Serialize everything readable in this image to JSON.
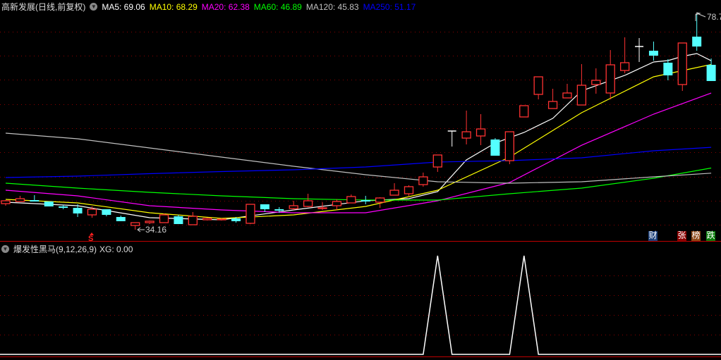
{
  "header": {
    "title": "高新发展(日线,前复权)",
    "ma": [
      {
        "label": "MA5: 69.06",
        "color": "#ffffff"
      },
      {
        "label": "MA10: 68.29",
        "color": "#ffff00"
      },
      {
        "label": "MA20: 62.38",
        "color": "#ff00ff"
      },
      {
        "label": "MA60: 46.89",
        "color": "#00ff00"
      },
      {
        "label": "MA120: 45.83",
        "color": "#c0c0c0"
      },
      {
        "label": "MA250: 51.17",
        "color": "#0000ff"
      }
    ]
  },
  "indicator": {
    "title": "爆发性黑马(9,12,26,9)",
    "value_label": "XG: 0.00"
  },
  "annotations": {
    "high_label": "78.7",
    "low_label": "34.16",
    "signal_mark": "S"
  },
  "tags": [
    {
      "label": "财",
      "bg": "#1a3f7a"
    },
    {
      "label": "张",
      "bg": "#8b0000"
    },
    {
      "label": "榜",
      "bg": "#8b4513"
    },
    {
      "label": "跌",
      "bg": "#0a7a0a"
    }
  ],
  "colors": {
    "up": "#ff3232",
    "down": "#54ffff",
    "flat": "#ffffff",
    "grid": "#8b0000"
  },
  "chart_data": [
    {
      "type": "candlestick",
      "fields": [
        "open",
        "high",
        "low",
        "close"
      ],
      "candles": [
        [
          39.54,
          40.27,
          39.11,
          40.13
        ],
        [
          39.98,
          41.15,
          39.98,
          40.56
        ],
        [
          40.27,
          41.29,
          39.98,
          39.98
        ],
        [
          39.98,
          39.98,
          38.96,
          38.96
        ],
        [
          38.96,
          39.25,
          38.38,
          38.67
        ],
        [
          38.67,
          39.4,
          36.78,
          37.51
        ],
        [
          37.22,
          38.96,
          36.63,
          38.38
        ],
        [
          38.38,
          38.38,
          36.92,
          37.22
        ],
        [
          36.78,
          37.07,
          35.91,
          35.91
        ],
        [
          35.03,
          35.61,
          34.16,
          35.61
        ],
        [
          35.61,
          36.05,
          35.32,
          35.91
        ],
        [
          35.61,
          37.51,
          35.61,
          37.22
        ],
        [
          36.92,
          37.22,
          35.32,
          35.32
        ],
        [
          35.18,
          37.8,
          35.18,
          36.92
        ],
        [
          36.2,
          36.63,
          36.05,
          36.49
        ],
        [
          36.2,
          36.49,
          36.05,
          36.34
        ],
        [
          36.49,
          36.78,
          35.61,
          35.91
        ],
        [
          35.47,
          39.4,
          35.32,
          39.4
        ],
        [
          39.4,
          39.4,
          37.8,
          38.38
        ],
        [
          38.38,
          38.82,
          37.65,
          38.09
        ],
        [
          38.53,
          40.13,
          38.24,
          39.11
        ],
        [
          38.96,
          41.58,
          38.82,
          40.13
        ],
        [
          38.53,
          39.84,
          38.24,
          38.67
        ],
        [
          39.11,
          40.42,
          38.24,
          39.98
        ],
        [
          39.69,
          41.43,
          39.69,
          41.0
        ],
        [
          40.27,
          41.15,
          39.4,
          39.98
        ],
        [
          39.84,
          40.86,
          38.67,
          40.71
        ],
        [
          41.29,
          43.76,
          41.29,
          42.31
        ],
        [
          41.58,
          43.33,
          41.15,
          43.04
        ],
        [
          43.47,
          45.95,
          43.04,
          45.07
        ],
        [
          47.11,
          49.59,
          46.09,
          49.59
        ],
        [
          54.54,
          54.54,
          51.33,
          54.54
        ],
        [
          53.08,
          58.76,
          51.77,
          54.39
        ],
        [
          53.52,
          58.03,
          51.62,
          54.97
        ],
        [
          52.79,
          53.08,
          49.44,
          49.44
        ],
        [
          48.42,
          54.39,
          47.69,
          54.39
        ],
        [
          57.45,
          59.78,
          57.45,
          59.78
        ],
        [
          62.11,
          65.74,
          61.08,
          65.74
        ],
        [
          59.19,
          63.27,
          59.19,
          60.65
        ],
        [
          61.38,
          64.29,
          61.38,
          62.4
        ],
        [
          59.92,
          68.37,
          59.92,
          64.0
        ],
        [
          64.14,
          67.49,
          62.25,
          65.02
        ],
        [
          62.4,
          71.27,
          61.08,
          68.22
        ],
        [
          67.05,
          73.9,
          66.47,
          68.66
        ],
        [
          72.0,
          73.75,
          68.8,
          72.0
        ],
        [
          71.13,
          73.02,
          69.09,
          70.11
        ],
        [
          68.66,
          69.38,
          65.02,
          66.04
        ],
        [
          64.14,
          72.73,
          62.83,
          72.73
        ],
        [
          74.04,
          78.7,
          71.13,
          72.0
        ],
        [
          68.22,
          69.53,
          64.87,
          64.87
        ]
      ],
      "ylim": [
        34.16,
        78.7
      ],
      "moving_averages": [
        {
          "name": "MA5",
          "color": "#ffffff",
          "points": [
            [
              0,
              39.83
            ],
            [
              5,
              39.11
            ],
            [
              10,
              36.63
            ],
            [
              15,
              36.2
            ],
            [
              20,
              38.23
            ],
            [
              25,
              40.13
            ],
            [
              28,
              40.56
            ],
            [
              30,
              42.02
            ],
            [
              32,
              48.57
            ],
            [
              34,
              52.06
            ],
            [
              36,
              54.25
            ],
            [
              38,
              57.16
            ],
            [
              40,
              62.83
            ],
            [
              43,
              66.04
            ],
            [
              45,
              68.8
            ],
            [
              46,
              69.09
            ],
            [
              47,
              69.96
            ],
            [
              48,
              70.55
            ],
            [
              49,
              69.06
            ]
          ]
        },
        {
          "name": "MA10",
          "color": "#ffff00",
          "points": [
            [
              0,
              40.42
            ],
            [
              5,
              39.69
            ],
            [
              10,
              37.65
            ],
            [
              15,
              36.49
            ],
            [
              20,
              37.22
            ],
            [
              25,
              38.96
            ],
            [
              30,
              42.31
            ],
            [
              35,
              49.15
            ],
            [
              40,
              58.32
            ],
            [
              45,
              65.74
            ],
            [
              49,
              68.29
            ]
          ]
        },
        {
          "name": "MA20",
          "color": "#ff00ff",
          "points": [
            [
              0,
              42.31
            ],
            [
              5,
              41.15
            ],
            [
              10,
              39.11
            ],
            [
              15,
              38.23
            ],
            [
              20,
              37.65
            ],
            [
              25,
              37.65
            ],
            [
              30,
              40.13
            ],
            [
              35,
              43.91
            ],
            [
              40,
              51.6
            ],
            [
              45,
              58.03
            ],
            [
              49,
              62.38
            ]
          ]
        },
        {
          "name": "MA60",
          "color": "#00ff00",
          "points": [
            [
              0,
              43.76
            ],
            [
              5,
              42.75
            ],
            [
              10,
              41.87
            ],
            [
              15,
              41.15
            ],
            [
              20,
              40.56
            ],
            [
              25,
              40.27
            ],
            [
              30,
              40.27
            ],
            [
              35,
              41.58
            ],
            [
              40,
              42.75
            ],
            [
              45,
              44.78
            ],
            [
              49,
              46.89
            ]
          ]
        },
        {
          "name": "MA120",
          "color": "#c0c0c0",
          "points": [
            [
              0,
              54.1
            ],
            [
              5,
              52.93
            ],
            [
              10,
              51.04
            ],
            [
              15,
              49.15
            ],
            [
              20,
              47.26
            ],
            [
              25,
              45.51
            ],
            [
              30,
              44.06
            ],
            [
              35,
              43.76
            ],
            [
              40,
              44.06
            ],
            [
              45,
              45.07
            ],
            [
              49,
              45.83
            ]
          ]
        },
        {
          "name": "MA250",
          "color": "#0000ff",
          "points": [
            [
              0,
              44.93
            ],
            [
              5,
              45.22
            ],
            [
              10,
              45.73
            ],
            [
              15,
              46.17
            ],
            [
              20,
              46.53
            ],
            [
              25,
              47.11
            ],
            [
              30,
              48.13
            ],
            [
              35,
              48.42
            ],
            [
              40,
              49.0
            ],
            [
              45,
              50.46
            ],
            [
              49,
              51.17
            ]
          ]
        }
      ]
    },
    {
      "type": "line",
      "name": "XG",
      "values": [
        0,
        0,
        0,
        0,
        0,
        0,
        0,
        0,
        0,
        0,
        0,
        0,
        0,
        0,
        0,
        0,
        0,
        0,
        0,
        0,
        0,
        0,
        0,
        0,
        0,
        0,
        0,
        0,
        0,
        0,
        1,
        0,
        0,
        0,
        0,
        0,
        1,
        0,
        0,
        0,
        0,
        0,
        0,
        0,
        0,
        0,
        0,
        0,
        0,
        0
      ],
      "ylim": [
        0,
        1
      ]
    }
  ]
}
